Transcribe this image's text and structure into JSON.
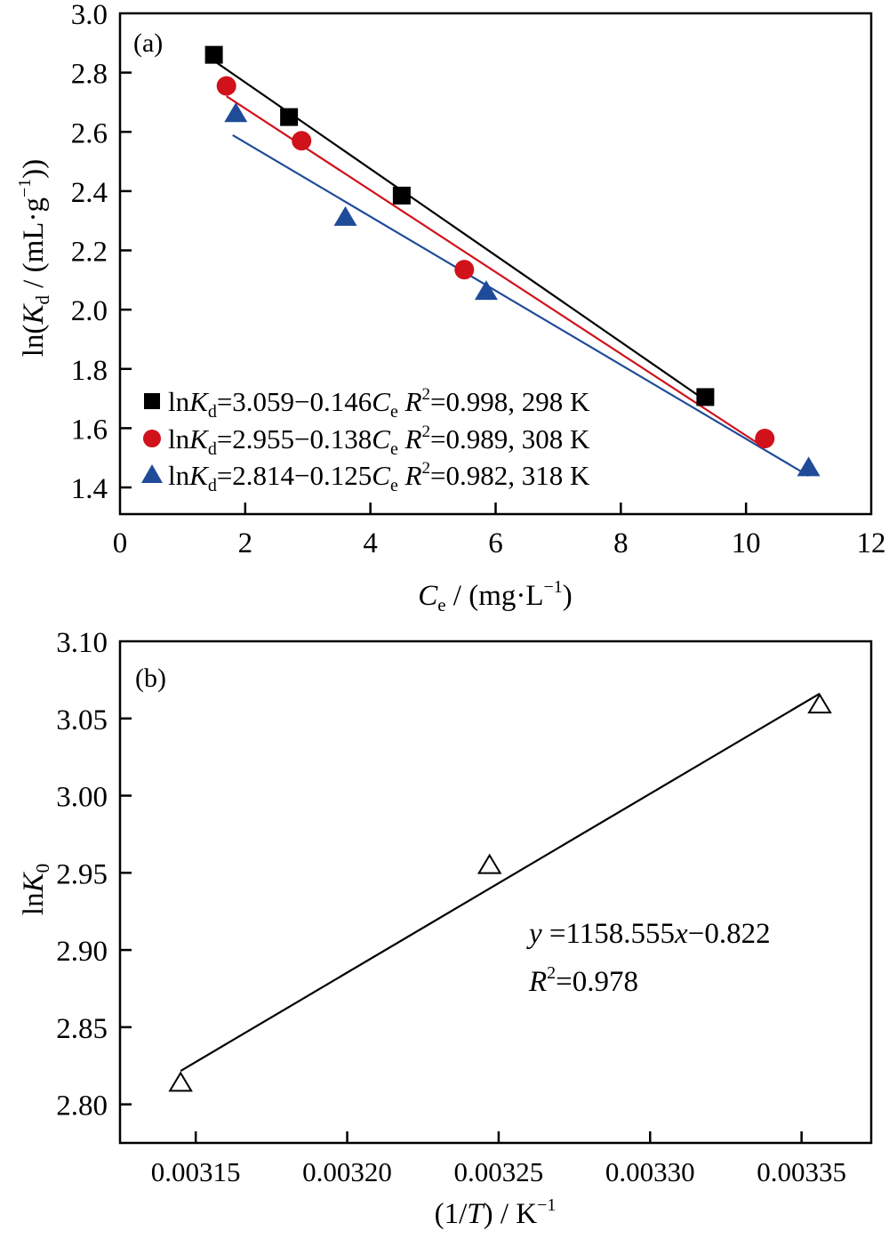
{
  "chart_data": [
    {
      "type": "scatter",
      "panel_label": "(a)",
      "xlabel": {
        "main": "C",
        "sub": "e",
        "rest": " / (mg·L",
        "sup": "−1",
        "end": ")"
      },
      "ylabel": {
        "pre": "ln(",
        "main": "K",
        "sub": "d",
        "rest": " / (mL·g",
        "sup": "−1",
        "end": "))"
      },
      "xlim": [
        0,
        12
      ],
      "ylim": [
        1.31,
        3.0
      ],
      "xticks": [
        0,
        2,
        4,
        6,
        8,
        10,
        12
      ],
      "xtick_labels": [
        "0",
        "2",
        "4",
        "6",
        "8",
        "10",
        "12"
      ],
      "yticks": [
        1.4,
        1.6,
        1.8,
        2.0,
        2.2,
        2.4,
        2.6,
        2.8,
        3.0
      ],
      "ytick_labels": [
        "1.4",
        "1.6",
        "1.8",
        "2.0",
        "2.2",
        "2.4",
        "2.6",
        "2.8",
        "3.0"
      ],
      "grid": false,
      "legend_position": "bottom-left",
      "series": [
        {
          "name": "298 K",
          "marker": "square",
          "color": "#000000",
          "x": [
            1.5,
            2.7,
            4.5,
            9.35
          ],
          "y": [
            2.86,
            2.65,
            2.385,
            1.705
          ],
          "fit": {
            "intercept": 3.059,
            "slope": -0.146,
            "x_range": [
              1.5,
              9.35
            ]
          },
          "legend": {
            "pre": "ln",
            "k": "K",
            "sub": "d",
            "eq": "=3.059−0.146",
            "c": "C",
            "csub": "e",
            "r": " R",
            "rsup": "2",
            "tail": "=0.998, 298 K"
          }
        },
        {
          "name": "308 K",
          "marker": "circle",
          "color": "#d0121b",
          "x": [
            1.7,
            2.9,
            5.5,
            10.3
          ],
          "y": [
            2.755,
            2.57,
            2.135,
            1.565
          ],
          "fit": {
            "intercept": 2.955,
            "slope": -0.138,
            "x_range": [
              1.7,
              10.3
            ]
          },
          "legend": {
            "pre": "ln",
            "k": "K",
            "sub": "d",
            "eq": "=2.955−0.138",
            "c": "C",
            "csub": "e",
            "r": " R",
            "rsup": "2",
            "tail": "=0.989, 308 K"
          }
        },
        {
          "name": "318 K",
          "marker": "triangle",
          "color": "#1f4b99",
          "x": [
            1.85,
            3.6,
            5.85,
            11.0
          ],
          "y": [
            2.66,
            2.31,
            2.06,
            1.465
          ],
          "fit": {
            "intercept": 2.814,
            "slope": -0.125,
            "x_range": [
              1.8,
              11.0
            ]
          },
          "legend": {
            "pre": "ln",
            "k": "K",
            "sub": "d",
            "eq": "=2.814−0.125",
            "c": "C",
            "csub": "e",
            "r": " R",
            "rsup": "2",
            "tail": "=0.982, 318 K"
          }
        }
      ]
    },
    {
      "type": "scatter",
      "panel_label": "(b)",
      "xlabel": {
        "pre": "(1/",
        "main": "T",
        "rest": ") / K",
        "sup": "−1"
      },
      "ylabel": {
        "pre": "ln",
        "main": "K",
        "sub": "0"
      },
      "xlim": [
        0.003125,
        0.003373
      ],
      "ylim": [
        2.775,
        3.1
      ],
      "xticks": [
        0.00315,
        0.0032,
        0.00325,
        0.0033,
        0.00335
      ],
      "xtick_labels": [
        "0.00315",
        "0.00320",
        "0.00325",
        "0.00330",
        "0.00335"
      ],
      "yticks": [
        2.8,
        2.85,
        2.9,
        2.95,
        3.0,
        3.05,
        3.1
      ],
      "ytick_labels": [
        "2.80",
        "2.85",
        "2.90",
        "2.95",
        "3.00",
        "3.05",
        "3.10"
      ],
      "grid": false,
      "series": [
        {
          "name": "lnK0",
          "marker": "open-triangle",
          "color": "#000000",
          "x": [
            0.003145,
            0.003247,
            0.003356
          ],
          "y": [
            2.814,
            2.955,
            3.059
          ],
          "fit": {
            "slope": 1158.555,
            "intercept": -0.822,
            "x_range": [
              0.003145,
              0.003356
            ]
          }
        }
      ],
      "annotation": {
        "line1_y": "y",
        "line1_eq": " =1158.555",
        "line1_x": "x",
        "line1_tail": "−0.822",
        "line2_r": "R",
        "line2_sup": "2",
        "line2_tail": "=0.978"
      }
    }
  ]
}
